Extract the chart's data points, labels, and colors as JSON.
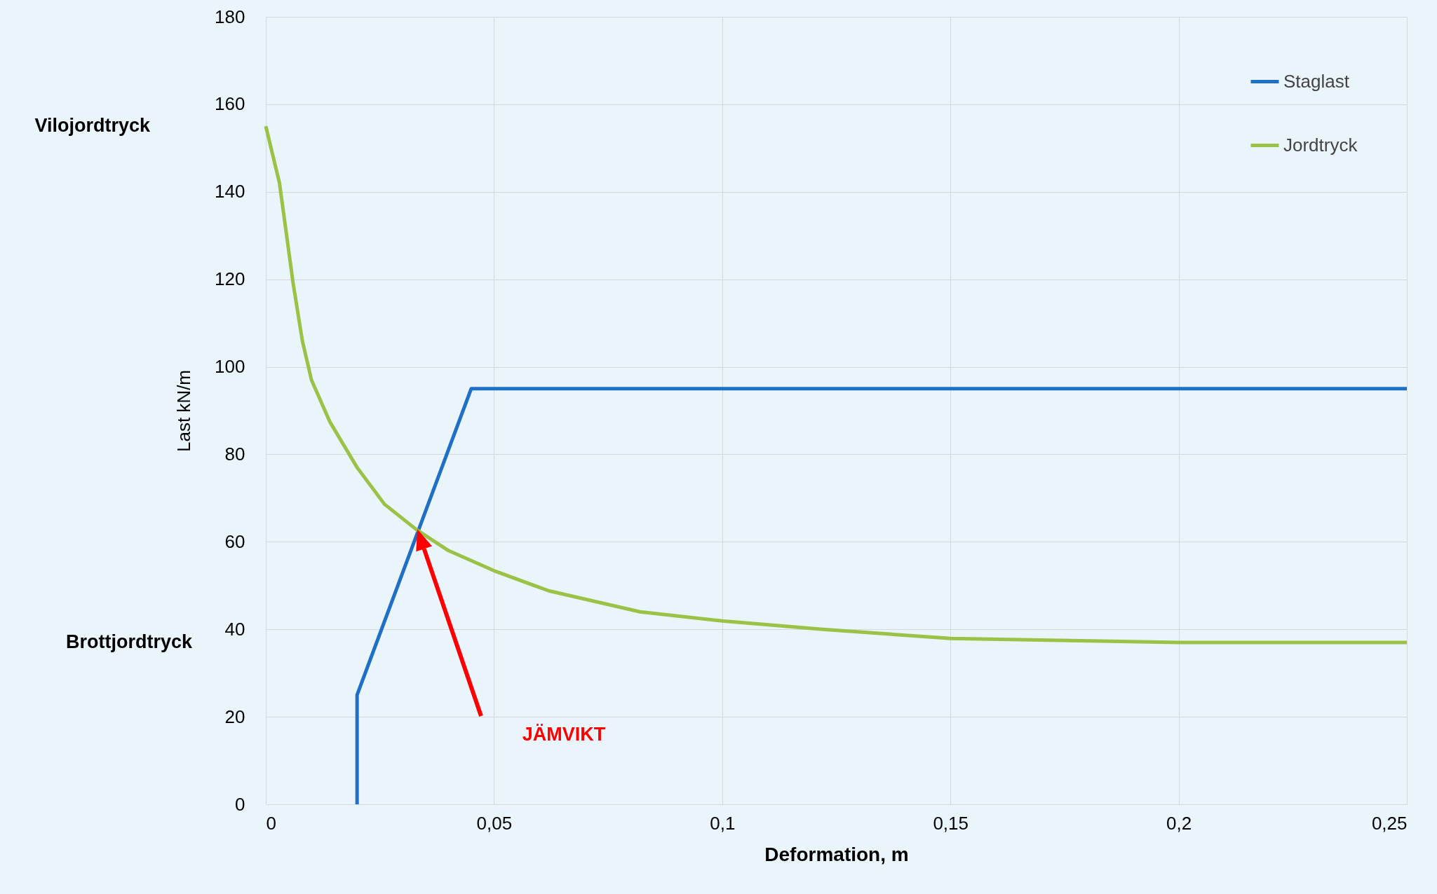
{
  "chart_data": {
    "type": "line",
    "xlabel": "Deformation, m",
    "ylabel": "Last kN/m",
    "xlim": [
      0,
      0.25
    ],
    "ylim": [
      0,
      180
    ],
    "xticks": [
      0,
      {
        "value": 0.05,
        "label": "0,05"
      },
      {
        "value": 0.1,
        "label": "0,1"
      },
      {
        "value": 0.15,
        "label": "0,15"
      },
      {
        "value": 0.2,
        "label": "0,2"
      },
      {
        "value": 0.25,
        "label": "0,25"
      }
    ],
    "yticks": [
      0,
      20,
      40,
      60,
      80,
      100,
      120,
      140,
      160,
      180
    ],
    "grid": true,
    "legend": "top right",
    "series": [
      {
        "name": "Staglast",
        "color": "#1f6fc6",
        "x": [
          0.02,
          0.02,
          0.045,
          0.25
        ],
        "values": [
          0,
          25,
          95,
          95
        ]
      },
      {
        "name": "Jordtryck",
        "color": "#9bc146",
        "x": [
          0,
          0.003,
          0.006,
          0.008,
          0.01,
          0.014,
          0.02,
          0.026,
          0.033,
          0.04,
          0.05,
          0.062,
          0.082,
          0.1,
          0.122,
          0.15,
          0.183,
          0.2,
          0.25
        ],
        "values": [
          155,
          142,
          119,
          106,
          97,
          87.5,
          77,
          68.6,
          62.8,
          58,
          53.4,
          48.8,
          44,
          41.9,
          40,
          37.9,
          37.3,
          37,
          37
        ]
      }
    ],
    "annotations": [
      "Vilojordtryck",
      "Brottjordtryck",
      "JÄMVIKT"
    ]
  }
}
